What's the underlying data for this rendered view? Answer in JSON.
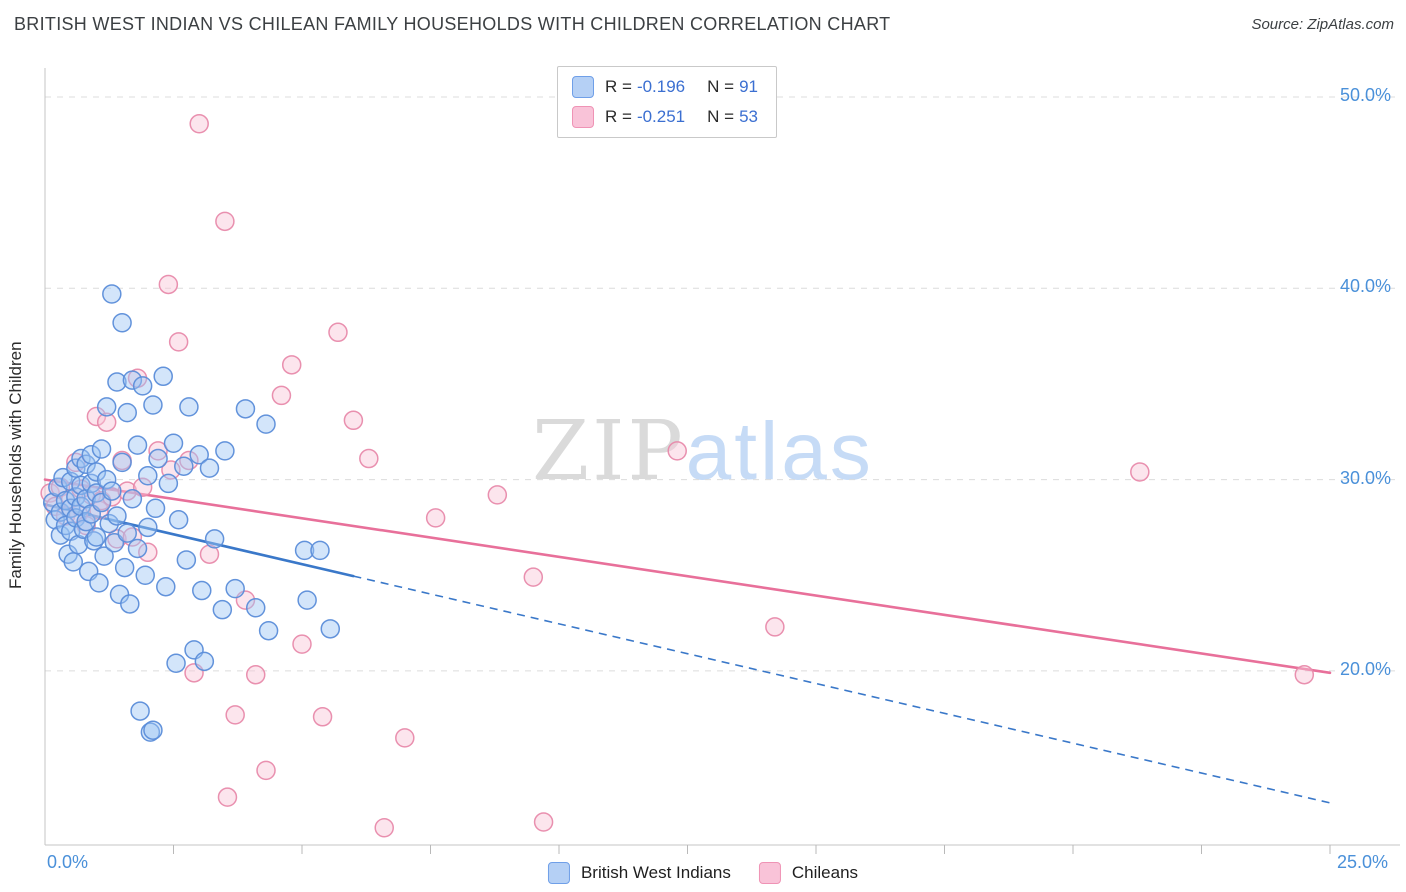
{
  "page": {
    "title": "BRITISH WEST INDIAN VS CHILEAN FAMILY HOUSEHOLDS WITH CHILDREN CORRELATION CHART",
    "source": "Source: ZipAtlas.com"
  },
  "watermark": {
    "zip": "ZIP",
    "atlas": "atlas"
  },
  "legend_box": {
    "rows": [
      {
        "r_label": "R =",
        "r_value": "-0.196",
        "n_label": "N =",
        "n_value": "91",
        "swatch_color": "#b5d0f5",
        "swatch_border": "#6f9fe8"
      },
      {
        "r_label": "R =",
        "r_value": "-0.251",
        "n_label": "N =",
        "n_value": "53",
        "swatch_color": "#f9c3d8",
        "swatch_border": "#ef93b5"
      }
    ]
  },
  "bottom_legend": {
    "items": [
      {
        "label": "British West Indians",
        "swatch_color": "#b5d0f5",
        "swatch_border": "#6f9fe8"
      },
      {
        "label": "Chileans",
        "swatch_color": "#f9c3d8",
        "swatch_border": "#ef93b5"
      }
    ]
  },
  "chart_data": {
    "type": "scatter",
    "title": "British West Indian vs Chilean Family Households with Children",
    "xlabel": "",
    "ylabel": "Family Households with Children",
    "x_axis": {
      "min": 0,
      "max": 25,
      "tick_interval": 2.5,
      "labels": [
        {
          "value": 0,
          "text": "0.0%"
        },
        {
          "value": 25,
          "text": "25.0%"
        }
      ]
    },
    "y_axis": {
      "unit": "%",
      "gridlines": [
        {
          "value": 50,
          "text": "50.0%"
        },
        {
          "value": 40,
          "text": "40.0%"
        },
        {
          "value": 30,
          "text": "30.0%"
        },
        {
          "value": 20,
          "text": "20.0%"
        }
      ]
    },
    "grid": "dashed-horizontal",
    "legend_position": "top-center and bottom-center",
    "series": [
      {
        "name": "British West Indians",
        "R": -0.196,
        "N": 91,
        "fill": "#9ec5f4",
        "stroke": "#5b8dd9",
        "points": [
          [
            0.15,
            28.8
          ],
          [
            0.2,
            27.9
          ],
          [
            0.25,
            29.6
          ],
          [
            0.3,
            28.3
          ],
          [
            0.3,
            27.1
          ],
          [
            0.35,
            30.1
          ],
          [
            0.4,
            28.9
          ],
          [
            0.4,
            27.6
          ],
          [
            0.45,
            26.1
          ],
          [
            0.5,
            29.9
          ],
          [
            0.5,
            28.5
          ],
          [
            0.5,
            27.3
          ],
          [
            0.55,
            25.7
          ],
          [
            0.6,
            30.6
          ],
          [
            0.6,
            29.1
          ],
          [
            0.6,
            28.0
          ],
          [
            0.65,
            26.6
          ],
          [
            0.7,
            31.1
          ],
          [
            0.7,
            29.7
          ],
          [
            0.7,
            28.6
          ],
          [
            0.75,
            27.4
          ],
          [
            0.8,
            30.8
          ],
          [
            0.8,
            29.0
          ],
          [
            0.8,
            27.8
          ],
          [
            0.85,
            25.2
          ],
          [
            0.9,
            31.3
          ],
          [
            0.9,
            29.8
          ],
          [
            0.9,
            28.2
          ],
          [
            0.95,
            26.8
          ],
          [
            1.0,
            30.4
          ],
          [
            1.0,
            29.3
          ],
          [
            1.0,
            27.0
          ],
          [
            1.05,
            24.6
          ],
          [
            1.1,
            31.6
          ],
          [
            1.1,
            28.8
          ],
          [
            1.15,
            26.0
          ],
          [
            1.2,
            33.8
          ],
          [
            1.2,
            30.0
          ],
          [
            1.25,
            27.7
          ],
          [
            1.3,
            39.7
          ],
          [
            1.3,
            29.4
          ],
          [
            1.35,
            26.7
          ],
          [
            1.4,
            35.1
          ],
          [
            1.4,
            28.1
          ],
          [
            1.45,
            24.0
          ],
          [
            1.5,
            38.2
          ],
          [
            1.5,
            30.9
          ],
          [
            1.55,
            25.4
          ],
          [
            1.6,
            33.5
          ],
          [
            1.6,
            27.2
          ],
          [
            1.65,
            23.5
          ],
          [
            1.7,
            35.2
          ],
          [
            1.7,
            29.0
          ],
          [
            1.8,
            31.8
          ],
          [
            1.8,
            26.4
          ],
          [
            1.85,
            17.9
          ],
          [
            1.9,
            34.9
          ],
          [
            1.95,
            25.0
          ],
          [
            2.0,
            30.2
          ],
          [
            2.0,
            27.5
          ],
          [
            2.05,
            16.8
          ],
          [
            2.1,
            33.9
          ],
          [
            2.1,
            16.9
          ],
          [
            2.15,
            28.5
          ],
          [
            2.2,
            31.1
          ],
          [
            2.3,
            35.4
          ],
          [
            2.35,
            24.4
          ],
          [
            2.4,
            29.8
          ],
          [
            2.5,
            31.9
          ],
          [
            2.55,
            20.4
          ],
          [
            2.6,
            27.9
          ],
          [
            2.7,
            30.7
          ],
          [
            2.75,
            25.8
          ],
          [
            2.8,
            33.8
          ],
          [
            2.9,
            21.1
          ],
          [
            3.0,
            31.3
          ],
          [
            3.05,
            24.2
          ],
          [
            3.1,
            20.5
          ],
          [
            3.2,
            30.6
          ],
          [
            3.3,
            26.9
          ],
          [
            3.45,
            23.2
          ],
          [
            3.5,
            31.5
          ],
          [
            3.7,
            24.3
          ],
          [
            3.9,
            33.7
          ],
          [
            4.1,
            23.3
          ],
          [
            4.3,
            32.9
          ],
          [
            4.35,
            22.1
          ],
          [
            5.05,
            26.3
          ],
          [
            5.35,
            26.3
          ],
          [
            5.1,
            23.7
          ],
          [
            5.55,
            22.2
          ]
        ]
      },
      {
        "name": "Chileans",
        "R": -0.251,
        "N": 53,
        "fill": "#f8c5d8",
        "stroke": "#e88aab",
        "points": [
          [
            0.1,
            29.3
          ],
          [
            0.2,
            28.6
          ],
          [
            0.3,
            29.6
          ],
          [
            0.4,
            28.1
          ],
          [
            0.5,
            29.0
          ],
          [
            0.6,
            30.9
          ],
          [
            0.65,
            28.2
          ],
          [
            0.7,
            29.5
          ],
          [
            0.8,
            27.6
          ],
          [
            0.9,
            29.2
          ],
          [
            1.0,
            33.3
          ],
          [
            1.05,
            28.4
          ],
          [
            1.1,
            28.9
          ],
          [
            1.2,
            33.0
          ],
          [
            1.3,
            29.1
          ],
          [
            1.4,
            26.9
          ],
          [
            1.5,
            31.0
          ],
          [
            1.6,
            29.4
          ],
          [
            1.7,
            27.0
          ],
          [
            1.8,
            35.3
          ],
          [
            1.9,
            29.6
          ],
          [
            2.0,
            26.2
          ],
          [
            2.2,
            31.5
          ],
          [
            2.4,
            40.2
          ],
          [
            2.45,
            30.5
          ],
          [
            2.6,
            37.2
          ],
          [
            2.8,
            31.0
          ],
          [
            2.9,
            19.9
          ],
          [
            3.0,
            48.6
          ],
          [
            3.2,
            26.1
          ],
          [
            3.5,
            43.5
          ],
          [
            3.55,
            13.4
          ],
          [
            3.7,
            17.7
          ],
          [
            3.9,
            23.7
          ],
          [
            4.1,
            19.8
          ],
          [
            4.3,
            14.8
          ],
          [
            4.6,
            34.4
          ],
          [
            4.8,
            36.0
          ],
          [
            5.0,
            21.4
          ],
          [
            5.4,
            17.6
          ],
          [
            5.7,
            37.7
          ],
          [
            6.0,
            33.1
          ],
          [
            6.3,
            31.1
          ],
          [
            6.6,
            11.8
          ],
          [
            7.0,
            16.5
          ],
          [
            7.6,
            28.0
          ],
          [
            8.8,
            29.2
          ],
          [
            9.5,
            24.9
          ],
          [
            9.7,
            12.1
          ],
          [
            12.3,
            31.5
          ],
          [
            14.2,
            22.3
          ],
          [
            21.3,
            30.4
          ],
          [
            24.5,
            19.8
          ]
        ]
      }
    ],
    "trend_lines": [
      {
        "series": "British West Indians",
        "color": "#3a78c9",
        "x_start": 0,
        "y_start": 28.7,
        "x_solid_end": 6.0,
        "x_end": 25,
        "y_end": 13.1,
        "style": "solid-then-dashed"
      },
      {
        "series": "Chileans",
        "color": "#e8709a",
        "x_start": 0,
        "y_start": 30.0,
        "x_solid_end": 25,
        "x_end": 25,
        "y_end": 19.9,
        "style": "solid"
      }
    ]
  }
}
